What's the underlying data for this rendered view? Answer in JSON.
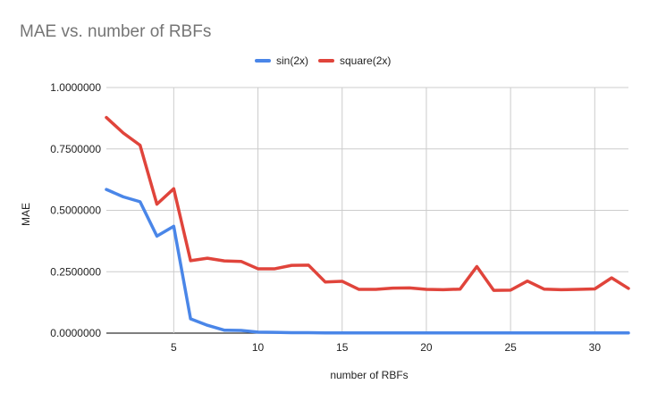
{
  "chart_data": {
    "type": "line",
    "title": "MAE vs. number of RBFs",
    "xlabel": "number of RBFs",
    "ylabel": "MAE",
    "xlim": [
      1,
      32
    ],
    "ylim": [
      0,
      1
    ],
    "x_ticks": [
      5,
      10,
      15,
      20,
      25,
      30
    ],
    "x_tick_labels": [
      "5",
      "10",
      "15",
      "20",
      "25",
      "30"
    ],
    "y_ticks": [
      0,
      0.25,
      0.5,
      0.75,
      1.0
    ],
    "y_tick_labels": [
      "0.0000000",
      "0.2500000",
      "0.5000000",
      "0.7500000",
      "1.0000000"
    ],
    "grid": true,
    "legend_position": "top",
    "x": [
      1,
      2,
      3,
      4,
      5,
      6,
      7,
      8,
      9,
      10,
      11,
      12,
      13,
      14,
      15,
      16,
      17,
      18,
      19,
      20,
      21,
      22,
      23,
      24,
      25,
      26,
      27,
      28,
      29,
      30,
      31,
      32
    ],
    "series": [
      {
        "name": "sin(2x)",
        "color": "#4a86e8",
        "values": [
          0.585,
          0.555,
          0.535,
          0.395,
          0.435,
          0.058,
          0.032,
          0.012,
          0.011,
          0.004,
          0.003,
          0.002,
          0.002,
          0.001,
          0.001,
          0.001,
          0.001,
          0.001,
          0.001,
          0.001,
          0.001,
          0.001,
          0.001,
          0.001,
          0.001,
          0.001,
          0.001,
          0.001,
          0.001,
          0.001,
          0.001,
          0.001
        ]
      },
      {
        "name": "square(2x)",
        "color": "#e0443b",
        "values": [
          0.878,
          0.815,
          0.765,
          0.525,
          0.588,
          0.295,
          0.305,
          0.294,
          0.292,
          0.262,
          0.262,
          0.276,
          0.277,
          0.208,
          0.211,
          0.178,
          0.178,
          0.183,
          0.184,
          0.178,
          0.177,
          0.179,
          0.271,
          0.174,
          0.175,
          0.212,
          0.179,
          0.177,
          0.178,
          0.18,
          0.225,
          0.182
        ]
      }
    ]
  }
}
